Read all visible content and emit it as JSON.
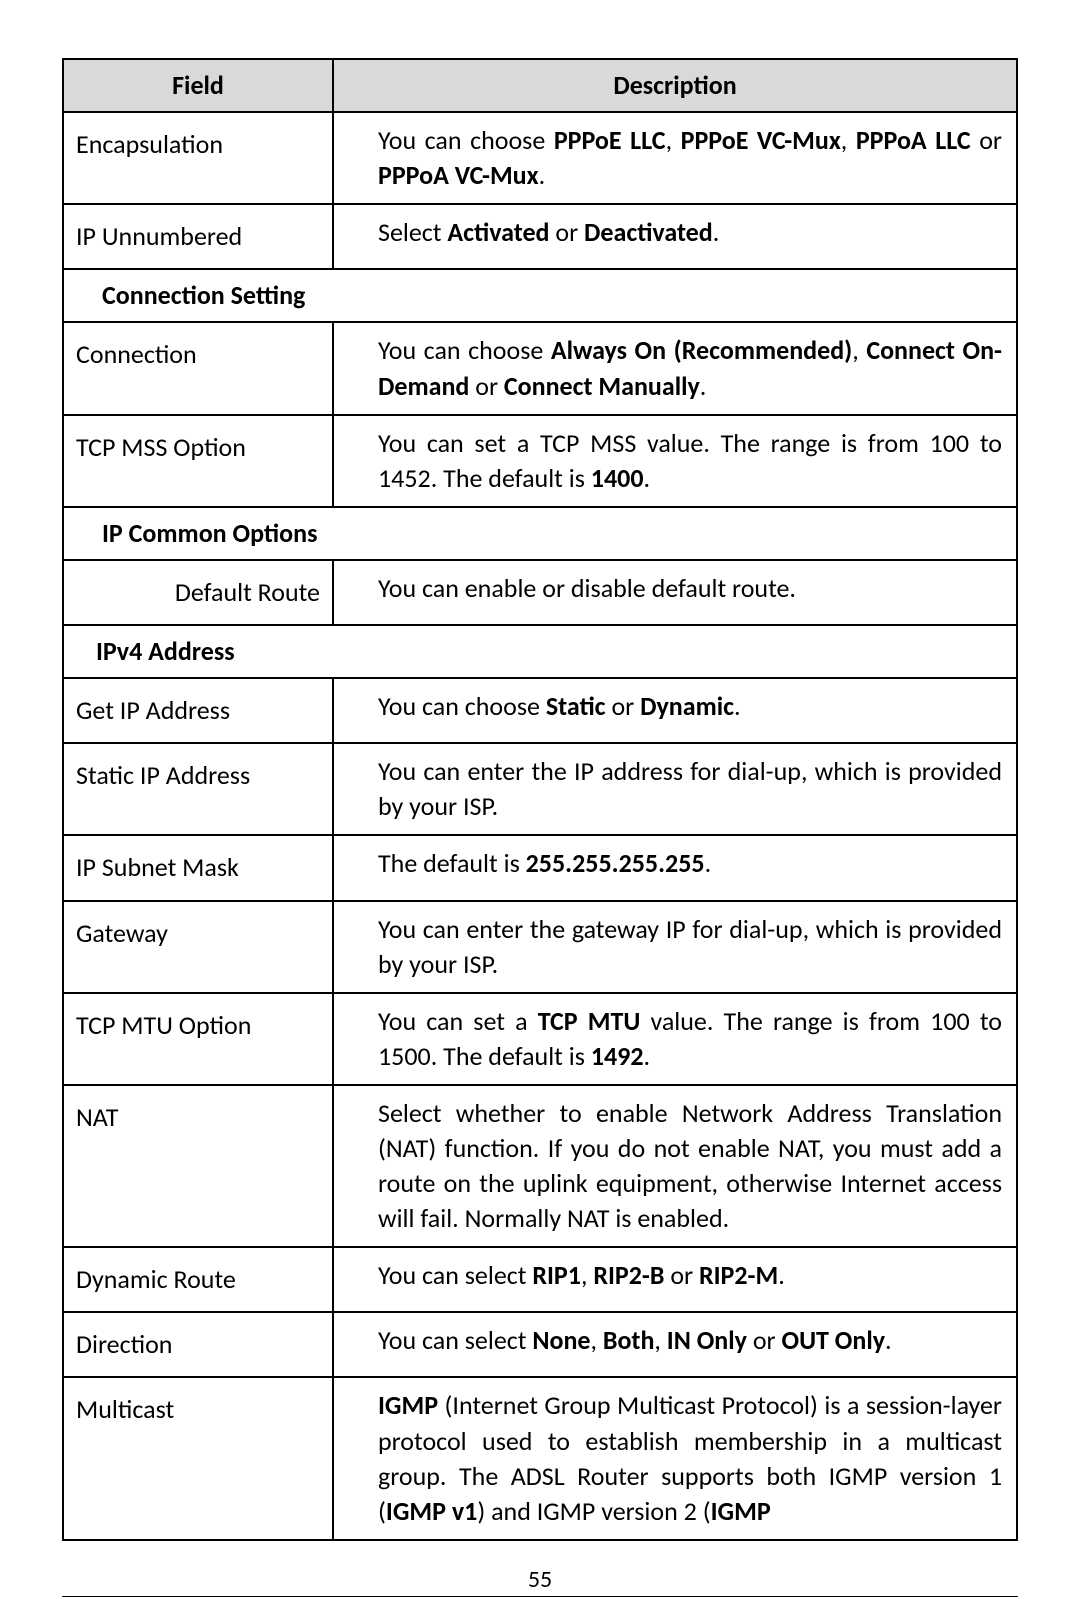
{
  "header": {
    "field": "Field",
    "description": "Description"
  },
  "rows": {
    "encapsulation": {
      "label": "Encapsulation",
      "desc": "You can choose <b>PPPoE LLC</b>, <b>PPPoE VC-Mux</b>, <b>PPPoA LLC</b> or <b>PPPoA VC-Mux</b>."
    },
    "ip_unnumbered": {
      "label": "IP Unnumbered",
      "desc": "Select <b>Activated</b> or <b>Deactivated</b>."
    },
    "section_connection": "Connection Setting",
    "connection": {
      "label": "Connection",
      "desc": "You can choose <b>Always On (Recommended)</b>, <b>Connect On-Demand</b> or <b>Connect Manually</b>."
    },
    "tcp_mss": {
      "label": "TCP MSS Option",
      "desc": "You can set a TCP MSS value. The range is from 100 to 1452. The default is <b>1400</b>."
    },
    "section_ip_common": "IP Common Options",
    "default_route": {
      "label": "Default Route",
      "desc": "You can enable or disable default route."
    },
    "section_ipv4": "IPv4 Address",
    "get_ip": {
      "label": "Get IP Address",
      "desc": "You can choose <b>Static</b> or <b>Dynamic</b>."
    },
    "static_ip": {
      "label": "Static IP Address",
      "desc": "You can enter the IP address for dial-up, which is provided by your ISP."
    },
    "subnet": {
      "label": "IP Subnet Mask",
      "desc": "The default is <b>255.255.255.255</b>."
    },
    "gateway": {
      "label": "Gateway",
      "desc": "You can enter the gateway IP for dial-up, which is provided by your ISP."
    },
    "tcp_mtu": {
      "label": "TCP MTU Option",
      "desc": "You can set a <b>TCP MTU</b> value. The range is from 100 to 1500. The default is <b>1492</b>."
    },
    "nat": {
      "label": "NAT",
      "desc": "Select whether to enable Network Address Translation (NAT) function. If you do not enable NAT, you must add a route on the uplink equipment, otherwise Internet access will fail. Normally NAT is enabled."
    },
    "dynamic_route": {
      "label": "Dynamic Route",
      "desc": "You can select <b>RIP1</b>, <b>RIP2-B</b> or <b>RIP2-M</b>."
    },
    "direction": {
      "label": "Direction",
      "desc": "You can select <b>None</b>, <b>Both</b>, <b>IN Only</b> or <b>OUT Only</b>."
    },
    "multicast": {
      "label": "Multicast",
      "desc": "<b>IGMP</b> (Internet Group Multicast Protocol) is a session-layer protocol used to establish membership in a multicast group. The ADSL Router supports both IGMP version 1 (<b>IGMP v1</b>) and IGMP version 2 (<b>IGMP</b>"
    }
  },
  "page_number": "55",
  "table_style": {
    "header_bg": "#d9d9d9",
    "border_color": "#000000",
    "font_size": 26,
    "label_col_width": 270
  }
}
